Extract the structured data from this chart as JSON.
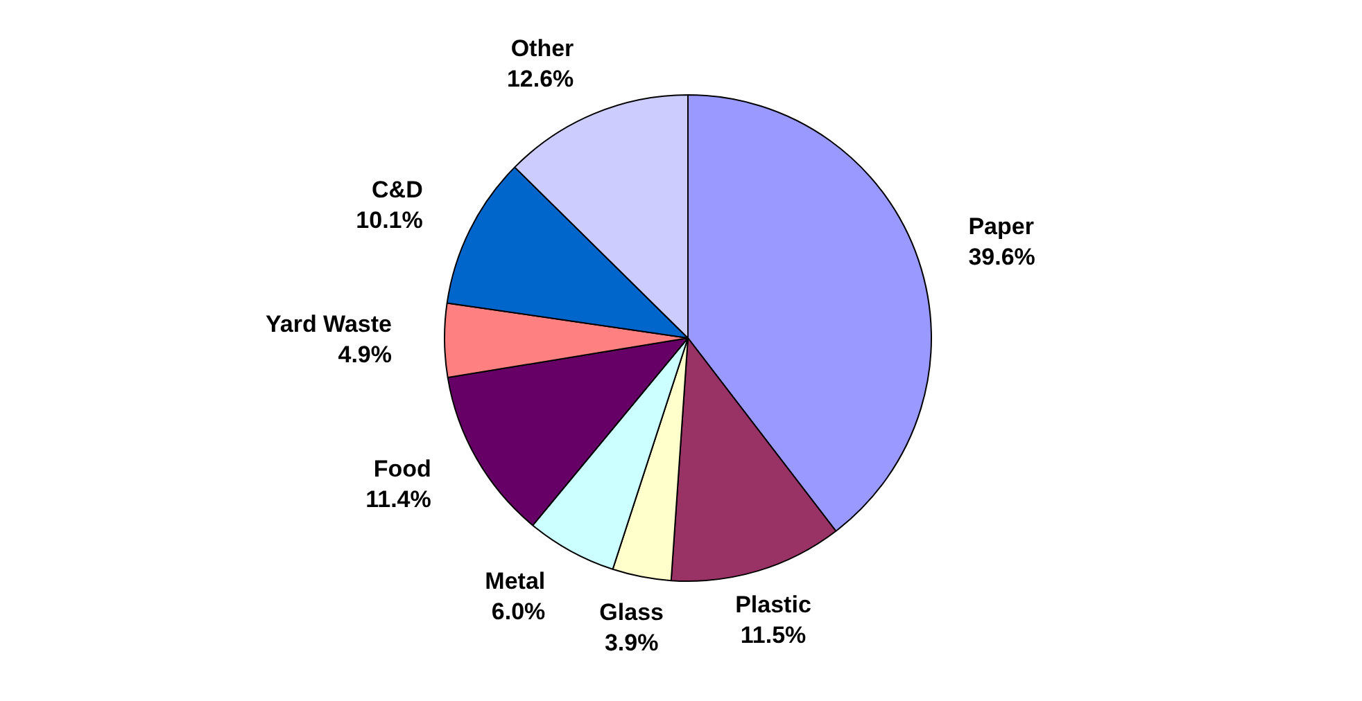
{
  "chart_data": {
    "type": "pie",
    "categories": [
      "Paper",
      "Plastic",
      "Glass",
      "Metal",
      "Food",
      "Yard Waste",
      "C&D",
      "Other"
    ],
    "values": [
      39.6,
      11.5,
      3.9,
      6.0,
      11.4,
      4.9,
      10.1,
      12.6
    ],
    "value_labels": [
      "39.6%",
      "11.5%",
      "3.9%",
      "6.0%",
      "11.4%",
      "4.9%",
      "10.1%",
      "12.6%"
    ],
    "colors": [
      "#9999ff",
      "#993366",
      "#ffffcc",
      "#ccffff",
      "#660066",
      "#ff8080",
      "#0066cc",
      "#ccccff"
    ],
    "legend": false
  }
}
